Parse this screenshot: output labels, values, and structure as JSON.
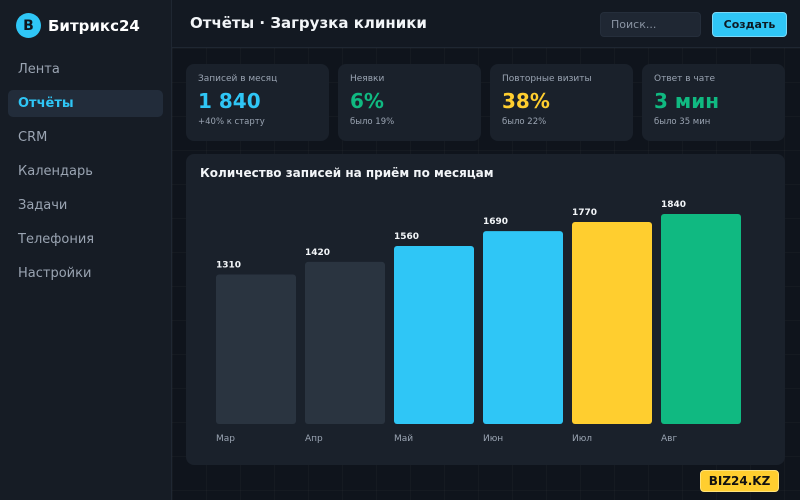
{
  "app": {
    "logo_letter": "B",
    "name": "Битрикс24"
  },
  "sidebar": {
    "items": [
      {
        "label": "Лента",
        "active": false
      },
      {
        "label": "Отчёты",
        "active": true
      },
      {
        "label": "CRM",
        "active": false
      },
      {
        "label": "Календарь",
        "active": false
      },
      {
        "label": "Задачи",
        "active": false
      },
      {
        "label": "Телефония",
        "active": false
      },
      {
        "label": "Настройки",
        "active": false
      }
    ]
  },
  "header": {
    "title": "Отчёты · Загрузка клиники",
    "search_placeholder": "Поиск...",
    "create_label": "Создать"
  },
  "kpis": [
    {
      "label": "Записей в месяц",
      "value": "1 840",
      "sub": "+40% к старту",
      "color": "#2fc6f6"
    },
    {
      "label": "Неявки",
      "value": "6%",
      "sub": "было 19%",
      "color": "#10b981"
    },
    {
      "label": "Повторные визиты",
      "value": "38%",
      "sub": "было 22%",
      "color": "#ffce2f"
    },
    {
      "label": "Ответ в чате",
      "value": "3 мин",
      "sub": "было 35 мин",
      "color": "#10b981"
    }
  ],
  "chart_data": {
    "type": "bar",
    "title": "Количество записей на приём по месяцам",
    "categories": [
      "Мар",
      "Апр",
      "Май",
      "Июн",
      "Июл",
      "Авг"
    ],
    "values": [
      1310,
      1420,
      1560,
      1690,
      1770,
      1840
    ],
    "colors": [
      "#2a3440",
      "#2a3440",
      "#2fc6f6",
      "#2fc6f6",
      "#ffce2f",
      "#10b981"
    ],
    "ylim": [
      0,
      1840
    ],
    "grid": false,
    "xlabel": "",
    "ylabel": ""
  },
  "watermark": "BIZ24.KZ"
}
